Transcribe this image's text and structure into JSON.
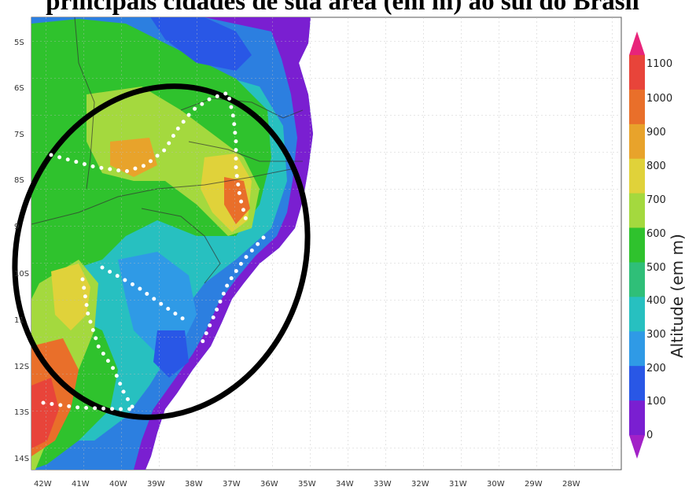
{
  "title": "principais cidades de sua área (em m) ao sul do Brasil",
  "map": {
    "lat_labels": [
      "5S",
      "6S",
      "7S",
      "8S",
      "9",
      "10S",
      "11",
      "12S",
      "13S",
      "14S"
    ],
    "lon_labels": [
      "42W",
      "41W",
      "40W",
      "39W",
      "38W",
      "37W",
      "36W",
      "35W",
      "34W",
      "33W",
      "32W",
      "31W",
      "30W",
      "29W",
      "28W"
    ],
    "ocean_color": "#ffffff",
    "grid": true,
    "overlay_ellipse": "black",
    "overlay_dotted_lines": "white"
  },
  "legend": {
    "title": "Altitude (em m)",
    "levels": [
      "1100",
      "1000",
      "900",
      "800",
      "700",
      "600",
      "500",
      "400",
      "300",
      "200",
      "100",
      "0"
    ],
    "colors": [
      "#e8247a",
      "#e8443a",
      "#e96f2a",
      "#e8a32b",
      "#e0d23a",
      "#a4d93e",
      "#2fc22d",
      "#2fbf78",
      "#27c0c0",
      "#2f9ae6",
      "#2957e6",
      "#7a1fd1",
      "#a221c7"
    ]
  }
}
